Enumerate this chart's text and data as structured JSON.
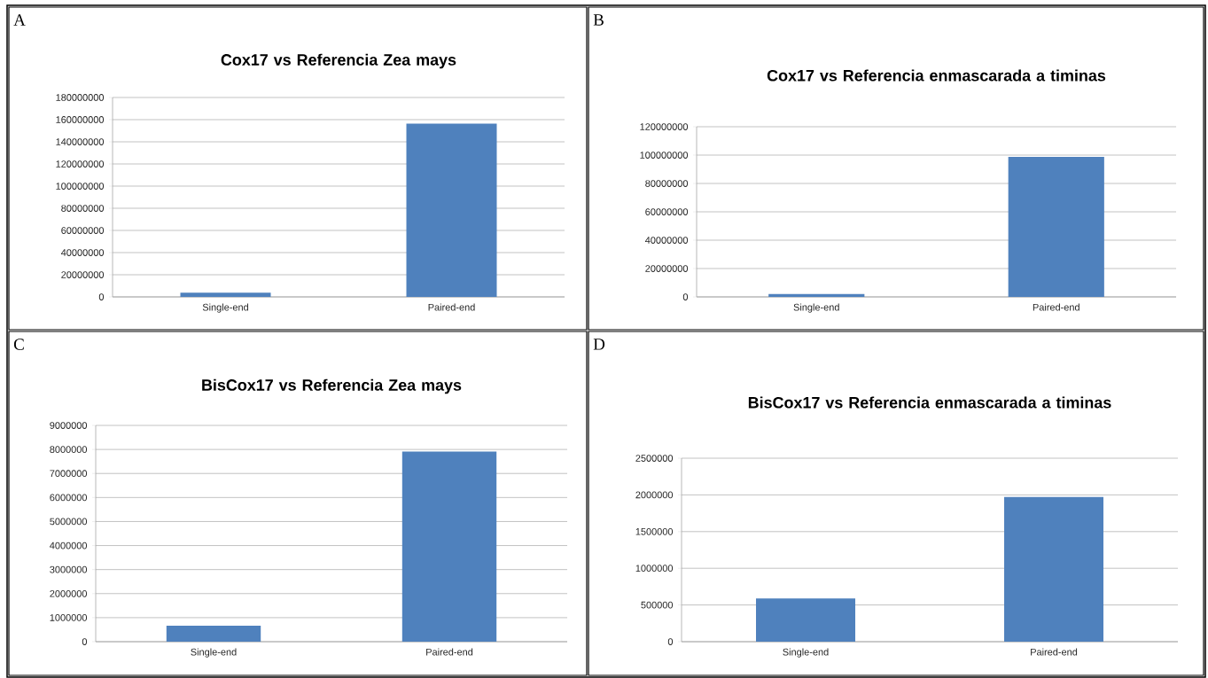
{
  "chart_data": [
    {
      "type": "bar",
      "title": "Cox17 vs Referencia Zea mays",
      "annotations": [
        "A"
      ],
      "categories": [
        "Single-end",
        "Paired-end"
      ],
      "values": [
        3800000,
        156300000
      ],
      "color": "#4f81bd",
      "ylim": [
        0,
        180000000
      ],
      "yticks": [
        0,
        20000000,
        40000000,
        60000000,
        80000000,
        100000000,
        120000000,
        140000000,
        160000000,
        180000000
      ],
      "grid": "y"
    },
    {
      "type": "bar",
      "title": "Cox17 vs Referencia  enmascarada a timinas",
      "annotations": [
        "B"
      ],
      "categories": [
        "Single-end",
        "Paired-end"
      ],
      "values": [
        2000000,
        98800000
      ],
      "color": "#4f81bd",
      "ylim": [
        0,
        120000000
      ],
      "yticks": [
        0,
        20000000,
        40000000,
        60000000,
        80000000,
        100000000,
        120000000
      ],
      "grid": "y"
    },
    {
      "type": "bar",
      "title": "BisCox17 vs Referencia Zea mays",
      "annotations": [
        "C"
      ],
      "categories": [
        "Single-end",
        "Paired-end"
      ],
      "values": [
        660000,
        7910000
      ],
      "color": "#4f81bd",
      "ylim": [
        0,
        9000000
      ],
      "yticks": [
        0,
        1000000,
        2000000,
        3000000,
        4000000,
        5000000,
        6000000,
        7000000,
        8000000,
        9000000
      ],
      "grid": "y"
    },
    {
      "type": "bar",
      "title": "BisCox17 vs Referencia enmascarada a timinas",
      "annotations": [
        "D"
      ],
      "categories": [
        "Single-end",
        "Paired-end"
      ],
      "values": [
        590000,
        1973000
      ],
      "color": "#4f81bd",
      "ylim": [
        0,
        2500000
      ],
      "yticks": [
        0,
        500000,
        1000000,
        1500000,
        2000000,
        2500000
      ],
      "grid": "y"
    }
  ]
}
